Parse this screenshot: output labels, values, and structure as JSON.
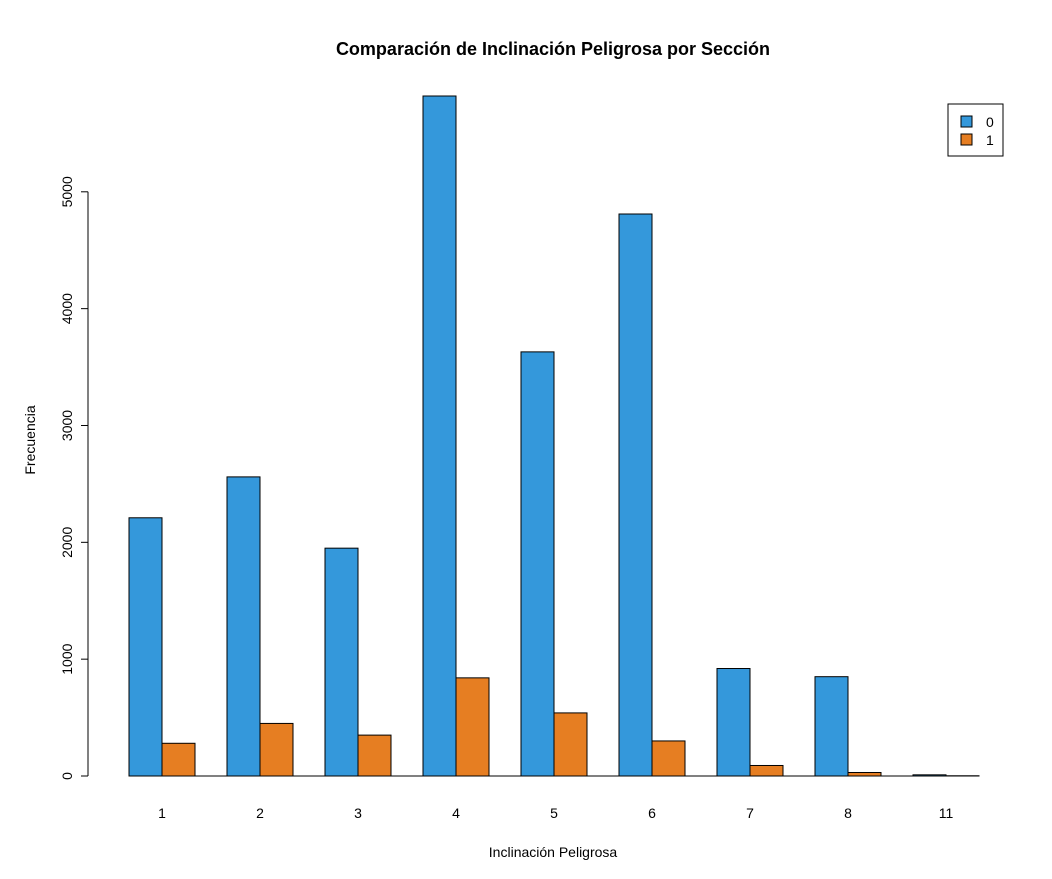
{
  "chart_data": {
    "type": "bar",
    "title": "Comparación de Inclinación Peligrosa por Sección",
    "xlabel": "Inclinación Peligrosa",
    "ylabel": "Frecuencia",
    "categories": [
      "1",
      "2",
      "3",
      "4",
      "5",
      "6",
      "7",
      "8",
      "11"
    ],
    "series": [
      {
        "name": "0",
        "color": "#3498db",
        "values": [
          2210,
          2560,
          1950,
          5820,
          3630,
          4810,
          920,
          850,
          10
        ]
      },
      {
        "name": "1",
        "color": "#e67e22",
        "values": [
          280,
          450,
          350,
          840,
          540,
          300,
          90,
          30,
          2
        ]
      }
    ],
    "ylim": [
      0,
      5820
    ],
    "yticks": [
      "0",
      "1000",
      "2000",
      "3000",
      "4000",
      "5000"
    ],
    "ytick_values": [
      0,
      1000,
      2000,
      3000,
      4000,
      5000
    ],
    "legend": {
      "position": "top-right",
      "entries": [
        "0",
        "1"
      ]
    },
    "grid": false
  }
}
